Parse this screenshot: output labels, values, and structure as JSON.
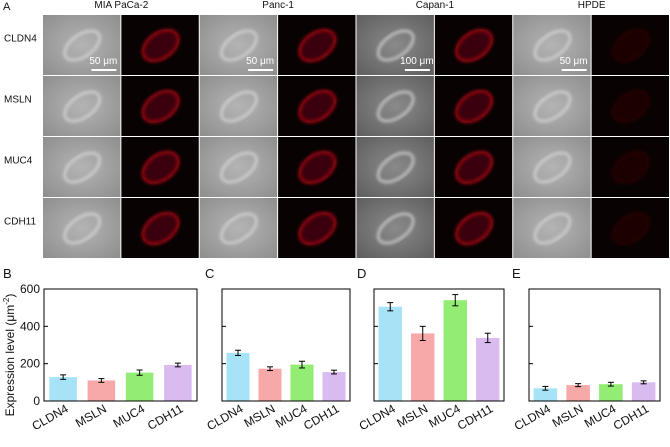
{
  "panel_a": {
    "label": "A",
    "columns": [
      "MIA PaCa-2",
      "Panc-1",
      "Capan-1",
      "HPDE"
    ],
    "rows": [
      "CLDN4",
      "MSLN",
      "MUC4",
      "CDH11"
    ],
    "scale_bars": [
      "50 μm",
      "50 μm",
      "100 μm",
      "50 μm"
    ]
  },
  "chart_data": [
    {
      "type": "bar",
      "label": "B",
      "ylabel": "Expression level (μm",
      "ylabel_sup": "-2",
      "ylabel_end": ")",
      "categories": [
        "CLDN4",
        "MSLN",
        "MUC4",
        "CDH11"
      ],
      "values": [
        128,
        110,
        152,
        193
      ],
      "errors": [
        12,
        10,
        14,
        10
      ],
      "colors": [
        "#a6e3f7",
        "#f7a9a9",
        "#93ec74",
        "#d9bbf0"
      ],
      "ylim": [
        0,
        600
      ],
      "yticks": [
        0,
        200,
        400,
        600
      ]
    },
    {
      "type": "bar",
      "label": "C",
      "categories": [
        "CLDN4",
        "MSLN",
        "MUC4",
        "CDH11"
      ],
      "values": [
        258,
        173,
        195,
        155
      ],
      "errors": [
        14,
        10,
        18,
        10
      ],
      "colors": [
        "#a6e3f7",
        "#f7a9a9",
        "#93ec74",
        "#d9bbf0"
      ],
      "ylim": [
        0,
        600
      ],
      "yticks": [
        0,
        200,
        400,
        600
      ]
    },
    {
      "type": "bar",
      "label": "D",
      "categories": [
        "CLDN4",
        "MSLN",
        "MUC4",
        "CDH11"
      ],
      "values": [
        505,
        362,
        540,
        338
      ],
      "errors": [
        22,
        38,
        30,
        25
      ],
      "colors": [
        "#a6e3f7",
        "#f7a9a9",
        "#93ec74",
        "#d9bbf0"
      ],
      "ylim": [
        0,
        600
      ],
      "yticks": [
        0,
        200,
        400,
        600
      ]
    },
    {
      "type": "bar",
      "label": "E",
      "categories": [
        "CLDN4",
        "MSLN",
        "MUC4",
        "CDH11"
      ],
      "values": [
        68,
        85,
        90,
        100
      ],
      "errors": [
        10,
        8,
        10,
        8
      ],
      "colors": [
        "#a6e3f7",
        "#f7a9a9",
        "#93ec74",
        "#d9bbf0"
      ],
      "ylim": [
        0,
        600
      ],
      "yticks": [
        0,
        200,
        400,
        600
      ]
    }
  ]
}
